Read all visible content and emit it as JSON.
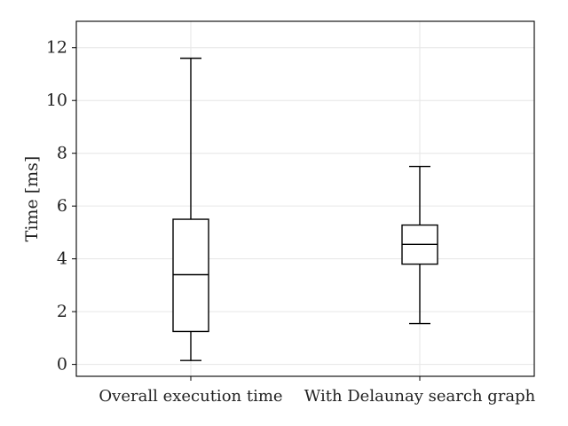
{
  "chart_data": {
    "type": "box",
    "ylabel": "Time [ms]",
    "ylim": [
      -0.45,
      13
    ],
    "yticks": [
      0,
      2,
      4,
      6,
      8,
      10,
      12
    ],
    "grid": true,
    "categories": [
      "Overall execution time",
      "With Delaunay search graph"
    ],
    "boxes": [
      {
        "category": "Overall execution time",
        "whisker_low": 0.15,
        "q1": 1.25,
        "median": 3.4,
        "q3": 5.5,
        "whisker_high": 11.6
      },
      {
        "category": "With Delaunay search graph",
        "whisker_low": 1.55,
        "q1": 3.8,
        "median": 4.55,
        "q3": 5.28,
        "whisker_high": 7.5
      }
    ]
  }
}
